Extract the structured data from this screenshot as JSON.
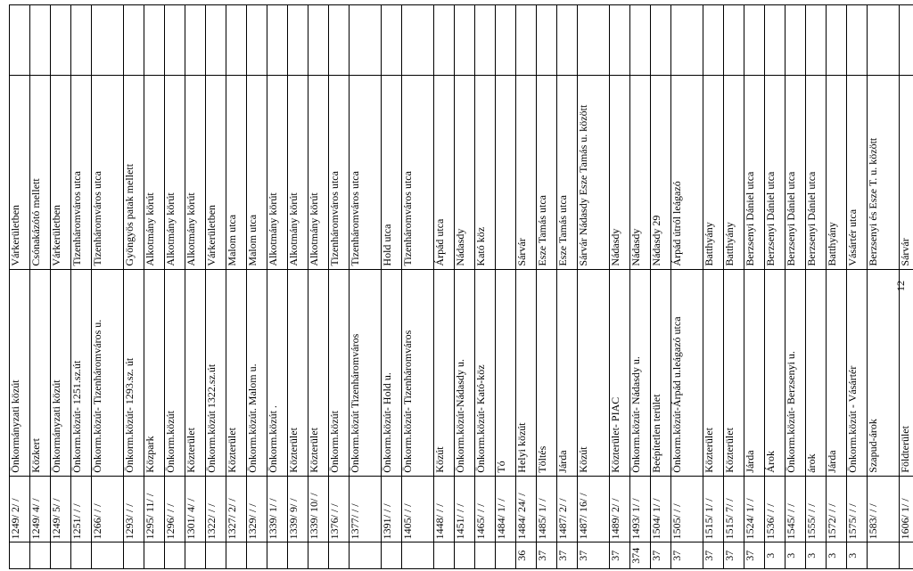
{
  "rows": [
    {
      "a": "",
      "b": "1249/ 2/ /",
      "c": "Önkormányzati közút",
      "d": "Várkerületben",
      "e": ""
    },
    {
      "a": "",
      "b": "1249/ 4/ /",
      "c": "Közkert",
      "d": "Csónakázótó mellett",
      "e": ""
    },
    {
      "a": "",
      "b": "1249/ 5/ /",
      "c": "Önkormányzati közút",
      "d": "Várkerületben",
      "e": ""
    },
    {
      "a": "",
      "b": "1251/ / /",
      "c": "Önkorm.közút- 1251.sz.út",
      "d": "Tizenháromváros utca",
      "e": ""
    },
    {
      "a": "",
      "b": "1266/ / /",
      "c": "Önkorm.közút- Tizenháromváros u.",
      "d": "Tizenháromváros utca",
      "e": ""
    },
    {
      "a": "",
      "b": "1293/ / /",
      "c": "Önkorm.közút- 1293.sz. út",
      "d": "Gyöngyös patak mellett",
      "e": ""
    },
    {
      "a": "",
      "b": "1295/ 11/ /",
      "c": "Közpark",
      "d": "Alkotmány körút",
      "e": ""
    },
    {
      "a": "",
      "b": "1296/ / /",
      "c": "Önkorm.közút",
      "d": "Alkotmány körút",
      "e": ""
    },
    {
      "a": "",
      "b": "1301/ 4/ /",
      "c": "Közterület",
      "d": "Alkotmány körút",
      "e": ""
    },
    {
      "a": "",
      "b": "1322/ / /",
      "c": "Önkorm.közút 1322.sz.út",
      "d": "Várkerületben",
      "e": ""
    },
    {
      "a": "",
      "b": "1327/ 2/ /",
      "c": "Közterület",
      "d": "Malom utca",
      "e": ""
    },
    {
      "a": "",
      "b": "1329/ / /",
      "c": "Önkorm.közút. Malom u.",
      "d": "Malom utca",
      "e": ""
    },
    {
      "a": "",
      "b": "1339/ 1/ /",
      "c": "Önkorm.közút .",
      "d": "Alkotmány körút",
      "e": ""
    },
    {
      "a": "",
      "b": "1339/ 9/ /",
      "c": "Közterület",
      "d": "Alkotmány körút",
      "e": ""
    },
    {
      "a": "",
      "b": "1339/ 10/ /",
      "c": "Közterület",
      "d": "Alkotmány körút",
      "e": ""
    },
    {
      "a": "",
      "b": "1376/ / /",
      "c": "Önkorm.közút",
      "d": "Tizenháromváros utca",
      "e": ""
    },
    {
      "a": "",
      "b": "1377/ / /",
      "c": "Önkorm.közút Tizenháromváros",
      "d": "Tizenháromváros utca",
      "e": ""
    },
    {
      "a": "",
      "b": "1391/ / /",
      "c": "Önkorm.közút- Hold u.",
      "d": "Hold utca",
      "e": ""
    },
    {
      "a": "",
      "b": "1405/ / /",
      "c": "Önkorm.közút- Tizenháromváros",
      "d": "Tizenháromváros utca",
      "e": ""
    },
    {
      "a": "",
      "b": "1448/ / /",
      "c": "Közút",
      "d": "Árpád utca",
      "e": ""
    },
    {
      "a": "",
      "b": "1451/ / /",
      "c": "Önkorm.közút-Nádasdy u.",
      "d": "Nádasdy",
      "e": ""
    },
    {
      "a": "",
      "b": "1465/ / /",
      "c": "Önkorm.közút- Kató-köz",
      "d": "Kató köz",
      "e": ""
    },
    {
      "a": "",
      "b": "1484/ 1/ /",
      "c": "Tó",
      "d": "",
      "e": ""
    },
    {
      "a": "36",
      "b": "1484/ 24/ /",
      "c": "Helyi közút",
      "d": "Sárvár",
      "e": ""
    },
    {
      "a": "37",
      "b": "1485/ 1/ /",
      "c": "Töltés",
      "d": "Esze Tamás utca",
      "e": ""
    },
    {
      "a": "37",
      "b": "1487/ 2/ /",
      "c": "Járda",
      "d": "Esze Tamás utca",
      "e": ""
    },
    {
      "a": "37",
      "b": "1487/ 16/ /",
      "c": "Közút",
      "d": "Sárvár Nádasdy Esze Tamás u. között",
      "e": ""
    },
    {
      "a": "37",
      "b": "1489/ 2/ /",
      "c": "Közterület- PIAC",
      "d": "Nádasdy",
      "e": ""
    },
    {
      "a": "374",
      "b": "1493/ 1/ /",
      "c": "Önkorm.közút- Nádasdy u.",
      "d": "Nádasdy",
      "e": ""
    },
    {
      "a": "37",
      "b": "1504/ 1/ /",
      "c": "Beépítetlen terület",
      "d": "Nádasdy 29",
      "e": ""
    },
    {
      "a": "37",
      "b": "1505/ / /",
      "c": "Önkorm.közút-Árpád u.leágazó utca",
      "d": "Árpád útról leágazó",
      "e": ""
    },
    {
      "a": "37",
      "b": "1515/ 1/ /",
      "c": "Közterület",
      "d": "Batthyány",
      "e": ""
    },
    {
      "a": "37",
      "b": "1515/ 7/ /",
      "c": "Közterület",
      "d": "Batthyány",
      "e": ""
    },
    {
      "a": "37",
      "b": "1524/ 1/ /",
      "c": "Járda",
      "d": "Berzsenyi Dániel utca",
      "e": ""
    },
    {
      "a": "3",
      "b": "1536/ / /",
      "c": "Árok",
      "d": "Berzsenyi Dániel utca",
      "e": ""
    },
    {
      "a": "3",
      "b": "1545/ / /",
      "c": "Önkorm.közút- Berzsenyi u.",
      "d": "Berzsenyi Dániel utca",
      "e": ""
    },
    {
      "a": "3",
      "b": "1555/ / /",
      "c": "árok",
      "d": "Berzsenyi Dániel utca",
      "e": ""
    },
    {
      "a": "3",
      "b": "1572/ / /",
      "c": "Járda",
      "d": "Batthyány",
      "e": ""
    },
    {
      "a": "3",
      "b": "1575/ / /",
      "c": "Önkorm.közút - Vásártér",
      "d": "Vásártér utca",
      "e": ""
    },
    {
      "a": "",
      "b": "1583/ / /",
      "c": "Szapud-árok",
      "d": "Berzsenyi és Esze T. u. között",
      "e": ""
    },
    {
      "a": "",
      "b": "1606/ 1/ /",
      "c": "Földterület",
      "d": "Sárvár",
      "e": ""
    }
  ],
  "page_number": "12"
}
